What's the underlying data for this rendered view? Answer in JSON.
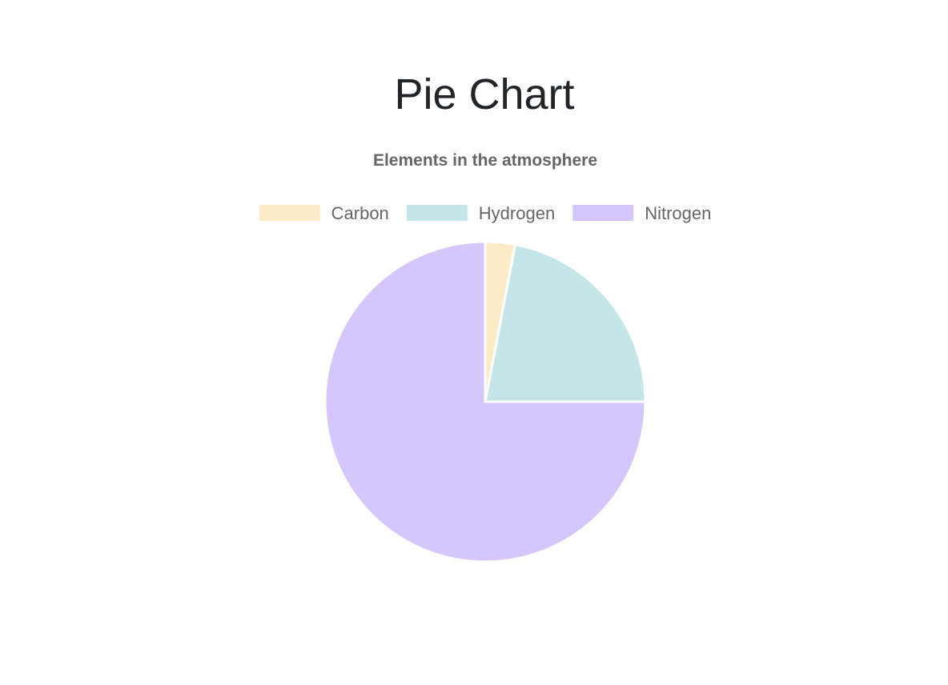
{
  "page": {
    "title": "Pie Chart"
  },
  "chart_data": {
    "type": "pie",
    "title": "Elements in the atmosphere",
    "legend_position": "top",
    "categories": [
      "Carbon",
      "Hydrogen",
      "Nitrogen"
    ],
    "values": [
      3,
      22,
      75
    ],
    "colors": [
      "#fdebc8",
      "#c4e6e6",
      "#d5c6fb"
    ],
    "slice_border_color": "#ffffff"
  }
}
